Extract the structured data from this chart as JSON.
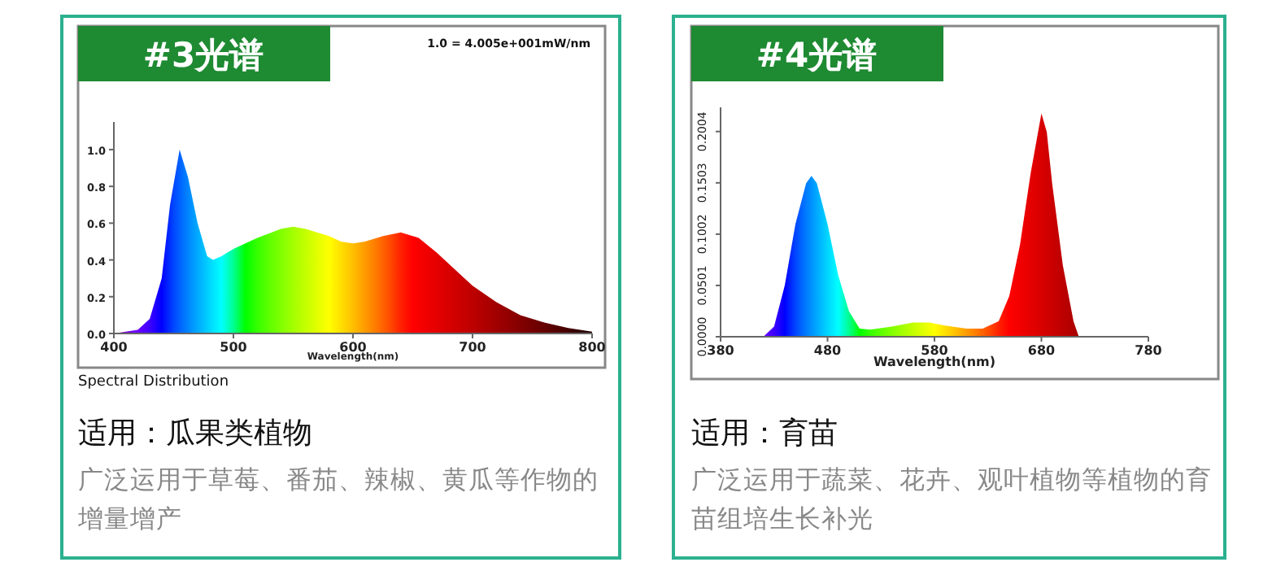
{
  "chart_data": [
    {
      "type": "area",
      "title": "#3光谱",
      "xlabel": "Wavelength(nm)",
      "x": [
        400,
        410,
        420,
        430,
        440,
        447,
        455,
        462,
        470,
        478,
        483,
        490,
        500,
        520,
        540,
        550,
        560,
        580,
        590,
        600,
        610,
        625,
        640,
        655,
        670,
        690,
        700,
        720,
        740,
        760,
        780,
        800
      ],
      "values": [
        0,
        0.01,
        0.02,
        0.08,
        0.3,
        0.7,
        1.0,
        0.85,
        0.6,
        0.42,
        0.4,
        0.42,
        0.46,
        0.52,
        0.57,
        0.58,
        0.57,
        0.53,
        0.5,
        0.49,
        0.5,
        0.53,
        0.55,
        0.52,
        0.44,
        0.32,
        0.26,
        0.17,
        0.1,
        0.06,
        0.03,
        0.01
      ],
      "xlim": [
        400,
        800
      ],
      "ylim": [
        0,
        1.15
      ],
      "xticks": [
        400,
        500,
        600,
        700,
        800
      ],
      "yticks": [
        {
          "value": 0,
          "label": "0.0"
        },
        {
          "value": 0.2,
          "label": "0.2"
        },
        {
          "value": 0.4,
          "label": "0.4"
        },
        {
          "value": 0.6,
          "label": "0.6"
        },
        {
          "value": 0.8,
          "label": "0.8"
        },
        {
          "value": 1,
          "label": "1.0"
        }
      ],
      "annotations": [
        "1.0 = 4.005e+001mW/nm",
        "Spectral Distribution",
        "适用：瓜果类植物",
        "广泛运用于草莓、番茄、辣椒、黄瓜等作物的增量增产"
      ]
    },
    {
      "type": "area",
      "title": "#4光谱",
      "xlabel": "Wavelength(nm)",
      "x": [
        420,
        430,
        440,
        450,
        460,
        465,
        470,
        480,
        490,
        500,
        510,
        520,
        540,
        560,
        575,
        590,
        610,
        625,
        640,
        650,
        660,
        670,
        680,
        685,
        690,
        700,
        710,
        715
      ],
      "values": [
        0,
        0.01,
        0.05,
        0.11,
        0.15,
        0.157,
        0.15,
        0.11,
        0.06,
        0.025,
        0.008,
        0.007,
        0.01,
        0.014,
        0.014,
        0.011,
        0.008,
        0.008,
        0.015,
        0.04,
        0.09,
        0.16,
        0.218,
        0.2,
        0.15,
        0.07,
        0.015,
        0
      ],
      "xlim": [
        380,
        780
      ],
      "ylim": [
        0,
        0.224
      ],
      "xticks": [
        380,
        480,
        580,
        680,
        780
      ],
      "yticks": [
        {
          "value": 0,
          "label": "0.0000"
        },
        {
          "value": 0.0501,
          "label": "0.0501"
        },
        {
          "value": 0.1002,
          "label": "0.1002"
        },
        {
          "value": 0.1503,
          "label": "0.1503"
        },
        {
          "value": 0.2004,
          "label": "0.2004"
        }
      ],
      "annotations": [
        "适用：育苗",
        "广泛运用于蔬菜、花卉、观叶植物等植物的育苗组培生长补光"
      ]
    }
  ]
}
